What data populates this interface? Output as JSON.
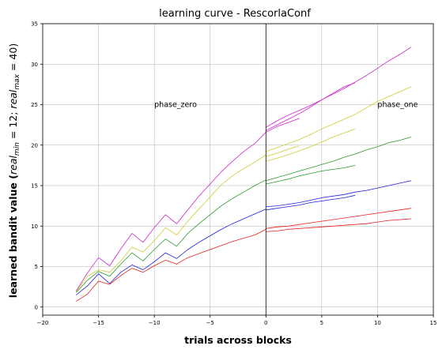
{
  "chart_data": {
    "type": "line",
    "title": "learning curve - RescorlaConf",
    "xlabel": "trials across blocks",
    "ylabel": "learned bandit value (real_min = 12; real_max = 40)",
    "ylabel_parts": {
      "prefix": "learned bandit value (",
      "v1": "real",
      "s1": "min",
      "m1": " = 12; ",
      "v2": "real",
      "s2": "max",
      "m2": " = 40)"
    },
    "xlim": [
      -20,
      15
    ],
    "ylim": [
      -1,
      35
    ],
    "xticks": [
      -20,
      -15,
      -10,
      -5,
      0,
      5,
      10,
      15
    ],
    "yticks": [
      0,
      5,
      10,
      15,
      20,
      25,
      30,
      35
    ],
    "grid": true,
    "vline_x": 0,
    "annotations": [
      {
        "text": "phase_zero",
        "x": -10,
        "y": 25
      },
      {
        "text": "phase_one",
        "x": 10,
        "y": 25
      }
    ],
    "colors": {
      "red": "#e32020",
      "blue": "#2020dd",
      "green": "#2a9a2a",
      "yellow": "#cccc33",
      "magenta": "#cc22cc"
    },
    "series": [
      {
        "color": "#e32020",
        "x": [
          -17,
          -16,
          -15,
          -14,
          -13,
          -12,
          -11,
          -10,
          -9,
          -8,
          -7,
          -6,
          -5,
          -4,
          -3,
          -2,
          -1,
          0
        ],
        "y": [
          0.7,
          1.6,
          3.2,
          2.8,
          3.9,
          4.8,
          4.3,
          5.1,
          5.8,
          5.3,
          6.1,
          6.6,
          7.1,
          7.6,
          8.1,
          8.5,
          8.9,
          9.6
        ]
      },
      {
        "color": "#2020dd",
        "x": [
          -17,
          -16,
          -15,
          -14,
          -13,
          -12,
          -11,
          -10,
          -9,
          -8,
          -7,
          -6,
          -5,
          -4,
          -3,
          -2,
          -1,
          0
        ],
        "y": [
          1.5,
          2.6,
          4.1,
          2.9,
          4.3,
          5.2,
          4.6,
          5.6,
          6.7,
          6.0,
          7.1,
          8.0,
          8.8,
          9.6,
          10.3,
          10.9,
          11.5,
          12.1
        ]
      },
      {
        "color": "#2a9a2a",
        "x": [
          -17,
          -16,
          -15,
          -14,
          -13,
          -12,
          -11,
          -10,
          -9,
          -8,
          -7,
          -6,
          -5,
          -4,
          -3,
          -2,
          -1,
          0
        ],
        "y": [
          1.8,
          3.3,
          4.4,
          3.8,
          5.3,
          6.7,
          5.7,
          7.1,
          8.4,
          7.5,
          9.1,
          10.3,
          11.4,
          12.5,
          13.4,
          14.2,
          15.0,
          15.7
        ]
      },
      {
        "color": "#cccc33",
        "x": [
          -17,
          -16,
          -15,
          -14,
          -13,
          -12,
          -11,
          -10,
          -9,
          -8,
          -7,
          -6,
          -5,
          -4,
          -3,
          -2,
          -1,
          0
        ],
        "y": [
          1.9,
          3.8,
          4.6,
          4.3,
          5.7,
          7.4,
          6.8,
          8.2,
          9.8,
          8.9,
          10.6,
          12.1,
          13.6,
          15.1,
          16.2,
          17.1,
          17.9,
          18.8
        ]
      },
      {
        "color": "#cc22cc",
        "x": [
          -17,
          -16,
          -15,
          -14,
          -13,
          -12,
          -11,
          -10,
          -9,
          -8,
          -7,
          -6,
          -5,
          -4,
          -3,
          -2,
          -1,
          0
        ],
        "y": [
          2.0,
          4.2,
          6.1,
          5.1,
          7.2,
          9.1,
          8.0,
          9.8,
          11.4,
          10.3,
          12.0,
          13.7,
          15.2,
          16.7,
          18.0,
          19.2,
          20.2,
          21.6
        ]
      },
      {
        "color": "#e32020",
        "x": [
          0,
          1,
          2,
          3,
          4,
          5,
          6,
          7,
          8,
          9,
          10,
          11,
          12,
          13
        ],
        "y": [
          9.7,
          9.9,
          10.0,
          10.2,
          10.4,
          10.6,
          10.8,
          11.0,
          11.2,
          11.4,
          11.6,
          11.8,
          12.0,
          12.2
        ]
      },
      {
        "color": "#e32020",
        "x": [
          0,
          1,
          2,
          3,
          4,
          5,
          6,
          7,
          8,
          9,
          10,
          11,
          12,
          13
        ],
        "y": [
          9.3,
          9.4,
          9.6,
          9.7,
          9.8,
          9.9,
          10.0,
          10.1,
          10.2,
          10.3,
          10.5,
          10.7,
          10.8,
          10.9
        ]
      },
      {
        "color": "#2020dd",
        "x": [
          0,
          1,
          2,
          3,
          4,
          5,
          6,
          7,
          8,
          9,
          10,
          11,
          12,
          13
        ],
        "y": [
          12.4,
          12.5,
          12.7,
          12.9,
          13.2,
          13.5,
          13.7,
          13.9,
          14.2,
          14.4,
          14.7,
          15.0,
          15.3,
          15.6
        ]
      },
      {
        "color": "#2020dd",
        "x": [
          0,
          1,
          2,
          3,
          4,
          5,
          6,
          7,
          8
        ],
        "y": [
          12.0,
          12.2,
          12.4,
          12.6,
          12.9,
          13.1,
          13.3,
          13.5,
          13.8
        ]
      },
      {
        "color": "#2a9a2a",
        "x": [
          0,
          1,
          2,
          3,
          4,
          5,
          6,
          7,
          8,
          9,
          10,
          11,
          12,
          13
        ],
        "y": [
          15.6,
          16.0,
          16.4,
          16.8,
          17.2,
          17.6,
          18.0,
          18.5,
          18.9,
          19.4,
          19.8,
          20.3,
          20.6,
          21.0
        ]
      },
      {
        "color": "#2a9a2a",
        "x": [
          0,
          1,
          2,
          3,
          4,
          5,
          6,
          7,
          8
        ],
        "y": [
          15.2,
          15.5,
          15.8,
          16.2,
          16.5,
          16.8,
          17.0,
          17.2,
          17.5
        ]
      },
      {
        "color": "#cccc33",
        "x": [
          0,
          1,
          2,
          3,
          4,
          5,
          6,
          7,
          8,
          9,
          10,
          11,
          12,
          13
        ],
        "y": [
          19.2,
          19.7,
          20.2,
          20.7,
          21.3,
          22.0,
          22.6,
          23.2,
          23.8,
          24.6,
          25.4,
          26.0,
          26.6,
          27.2
        ]
      },
      {
        "color": "#cccc33",
        "x": [
          0,
          1,
          2,
          3,
          4,
          5,
          6,
          7,
          8
        ],
        "y": [
          18.0,
          18.4,
          18.8,
          19.3,
          19.8,
          20.4,
          21.0,
          21.5,
          22.0
        ]
      },
      {
        "color": "#cccc33",
        "x": [
          0,
          1,
          2,
          3
        ],
        "y": [
          18.6,
          19.0,
          19.5,
          19.9
        ]
      },
      {
        "color": "#cc22cc",
        "x": [
          0,
          1,
          2,
          3,
          4,
          5,
          6,
          7,
          8,
          9,
          10,
          11,
          12,
          13
        ],
        "y": [
          22.2,
          23.0,
          23.7,
          24.3,
          24.9,
          25.6,
          26.3,
          27.0,
          27.8,
          28.6,
          29.5,
          30.4,
          31.2,
          32.1
        ]
      },
      {
        "color": "#cc22cc",
        "x": [
          0,
          1,
          2,
          3,
          4,
          5,
          6,
          7,
          8
        ],
        "y": [
          21.8,
          22.5,
          23.2,
          23.9,
          24.7,
          25.6,
          26.4,
          27.2,
          27.7
        ]
      },
      {
        "color": "#cc22cc",
        "x": [
          0,
          1,
          2,
          3
        ],
        "y": [
          21.6,
          22.3,
          22.8,
          23.3
        ]
      }
    ]
  }
}
